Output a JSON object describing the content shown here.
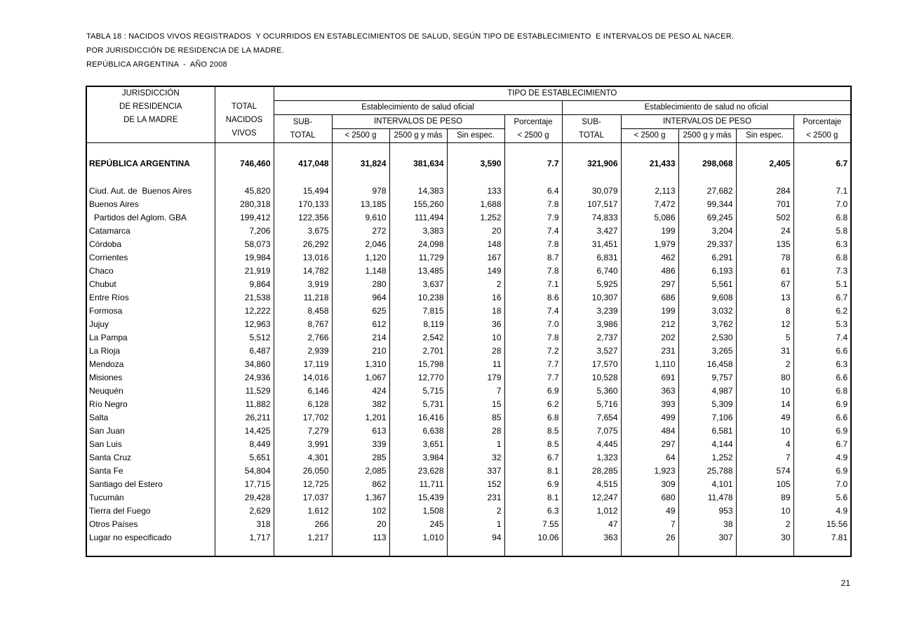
{
  "titles": [
    "TABLA 18 : NACIDOS VIVOS REGISTRADOS  Y OCURRIDOS EN ESTABLECIMIENTOS DE SALUD, SEGÚN TIPO DE ESTABLECIMIENTO  E INTERVALOS DE PESO AL NACER.",
    "POR JURISDICCIÓN DE RESIDENCIA DE LA MADRE.",
    "REPÚBLICA ARGENTINA  -  AÑO 2008"
  ],
  "page_number": "21",
  "header": {
    "jurisdiccion": [
      "JURISDICCIÓN",
      "DE RESIDENCIA",
      "DE LA MADRE"
    ],
    "total_nacidos": [
      "TOTAL",
      "NACIDOS",
      "VIVOS"
    ],
    "tipo_establecimiento": "TIPO DE ESTABLECIMIENTO",
    "oficial": "Establecimiento de salud oficial",
    "no_oficial": "Establecimiento de salud no oficial",
    "sub_total": [
      "SUB-",
      "TOTAL"
    ],
    "intervalos": "INTERVALOS DE PESO",
    "porcentaje": [
      "Porcentaje",
      "< 2500 g"
    ],
    "peso_cols": [
      "< 2500 g",
      "2500 g y más",
      "Sin espec."
    ]
  },
  "total_row": {
    "label": "REPÚBLICA ARGENTINA",
    "indent": false,
    "values": [
      "746,460",
      "417,048",
      "31,824",
      "381,634",
      "3,590",
      "7.7",
      "321,906",
      "21,433",
      "298,068",
      "2,405",
      "6.7"
    ]
  },
  "rows": [
    {
      "label": "Ciud. Aut. de  Buenos Aires",
      "indent": false,
      "values": [
        "45,820",
        "15,494",
        "978",
        "14,383",
        "133",
        "6.4",
        "30,079",
        "2,113",
        "27,682",
        "284",
        "7.1"
      ]
    },
    {
      "label": "Buenos Aires",
      "indent": false,
      "values": [
        "280,318",
        "170,133",
        "13,185",
        "155,260",
        "1,688",
        "7.8",
        "107,517",
        "7,472",
        "99,344",
        "701",
        "7.0"
      ]
    },
    {
      "label": "Partidos del Aglom. GBA",
      "indent": true,
      "values": [
        "199,412",
        "122,356",
        "9,610",
        "111,494",
        "1,252",
        "7.9",
        "74,833",
        "5,086",
        "69,245",
        "502",
        "6.8"
      ]
    },
    {
      "label": "Catamarca",
      "indent": false,
      "values": [
        "7,206",
        "3,675",
        "272",
        "3,383",
        "20",
        "7.4",
        "3,427",
        "199",
        "3,204",
        "24",
        "5.8"
      ]
    },
    {
      "label": "Córdoba",
      "indent": false,
      "values": [
        "58,073",
        "26,292",
        "2,046",
        "24,098",
        "148",
        "7.8",
        "31,451",
        "1,979",
        "29,337",
        "135",
        "6.3"
      ]
    },
    {
      "label": "Corrientes",
      "indent": false,
      "values": [
        "19,984",
        "13,016",
        "1,120",
        "11,729",
        "167",
        "8.7",
        "6,831",
        "462",
        "6,291",
        "78",
        "6.8"
      ]
    },
    {
      "label": "Chaco",
      "indent": false,
      "values": [
        "21,919",
        "14,782",
        "1,148",
        "13,485",
        "149",
        "7.8",
        "6,740",
        "486",
        "6,193",
        "61",
        "7.3"
      ]
    },
    {
      "label": "Chubut",
      "indent": false,
      "values": [
        "9,864",
        "3,919",
        "280",
        "3,637",
        "2",
        "7.1",
        "5,925",
        "297",
        "5,561",
        "67",
        "5.1"
      ]
    },
    {
      "label": "Entre Ríos",
      "indent": false,
      "values": [
        "21,538",
        "11,218",
        "964",
        "10,238",
        "16",
        "8.6",
        "10,307",
        "686",
        "9,608",
        "13",
        "6.7"
      ]
    },
    {
      "label": "Formosa",
      "indent": false,
      "values": [
        "12,222",
        "8,458",
        "625",
        "7,815",
        "18",
        "7.4",
        "3,239",
        "199",
        "3,032",
        "8",
        "6.2"
      ]
    },
    {
      "label": "Jujuy",
      "indent": false,
      "values": [
        "12,963",
        "8,767",
        "612",
        "8,119",
        "36",
        "7.0",
        "3,986",
        "212",
        "3,762",
        "12",
        "5.3"
      ]
    },
    {
      "label": "La Pampa",
      "indent": false,
      "values": [
        "5,512",
        "2,766",
        "214",
        "2,542",
        "10",
        "7.8",
        "2,737",
        "202",
        "2,530",
        "5",
        "7.4"
      ]
    },
    {
      "label": "La Rioja",
      "indent": false,
      "values": [
        "6,487",
        "2,939",
        "210",
        "2,701",
        "28",
        "7.2",
        "3,527",
        "231",
        "3,265",
        "31",
        "6.6"
      ]
    },
    {
      "label": "Mendoza",
      "indent": false,
      "values": [
        "34,860",
        "17,119",
        "1,310",
        "15,798",
        "11",
        "7.7",
        "17,570",
        "1,110",
        "16,458",
        "2",
        "6.3"
      ]
    },
    {
      "label": "Misiones",
      "indent": false,
      "values": [
        "24,936",
        "14,016",
        "1,067",
        "12,770",
        "179",
        "7.7",
        "10,528",
        "691",
        "9,757",
        "80",
        "6.6"
      ]
    },
    {
      "label": "Neuquén",
      "indent": false,
      "values": [
        "11,529",
        "6,146",
        "424",
        "5,715",
        "7",
        "6.9",
        "5,360",
        "363",
        "4,987",
        "10",
        "6.8"
      ]
    },
    {
      "label": "Río Negro",
      "indent": false,
      "values": [
        "11,882",
        "6,128",
        "382",
        "5,731",
        "15",
        "6.2",
        "5,716",
        "393",
        "5,309",
        "14",
        "6.9"
      ]
    },
    {
      "label": "Salta",
      "indent": false,
      "values": [
        "26,211",
        "17,702",
        "1,201",
        "16,416",
        "85",
        "6.8",
        "7,654",
        "499",
        "7,106",
        "49",
        "6.6"
      ]
    },
    {
      "label": "San Juan",
      "indent": false,
      "values": [
        "14,425",
        "7,279",
        "613",
        "6,638",
        "28",
        "8.5",
        "7,075",
        "484",
        "6,581",
        "10",
        "6.9"
      ]
    },
    {
      "label": "San Luis",
      "indent": false,
      "values": [
        "8,449",
        "3,991",
        "339",
        "3,651",
        "1",
        "8.5",
        "4,445",
        "297",
        "4,144",
        "4",
        "6.7"
      ]
    },
    {
      "label": "Santa Cruz",
      "indent": false,
      "values": [
        "5,651",
        "4,301",
        "285",
        "3,984",
        "32",
        "6.7",
        "1,323",
        "64",
        "1,252",
        "7",
        "4.9"
      ]
    },
    {
      "label": "Santa Fe",
      "indent": false,
      "values": [
        "54,804",
        "26,050",
        "2,085",
        "23,628",
        "337",
        "8.1",
        "28,285",
        "1,923",
        "25,788",
        "574",
        "6.9"
      ]
    },
    {
      "label": "Santiago del Estero",
      "indent": false,
      "values": [
        "17,715",
        "12,725",
        "862",
        "11,711",
        "152",
        "6.9",
        "4,515",
        "309",
        "4,101",
        "105",
        "7.0"
      ]
    },
    {
      "label": "Tucumán",
      "indent": false,
      "values": [
        "29,428",
        "17,037",
        "1,367",
        "15,439",
        "231",
        "8.1",
        "12,247",
        "680",
        "11,478",
        "89",
        "5.6"
      ]
    },
    {
      "label": "Tierra del Fuego",
      "indent": false,
      "values": [
        "2,629",
        "1,612",
        "102",
        "1,508",
        "2",
        "6.3",
        "1,012",
        "49",
        "953",
        "10",
        "4.9"
      ]
    },
    {
      "label": "Otros Países",
      "indent": false,
      "values": [
        "318",
        "266",
        "20",
        "245",
        "1",
        "7.55",
        "47",
        "7",
        "38",
        "2",
        "15.56"
      ]
    },
    {
      "label": "Lugar no especificado",
      "indent": false,
      "values": [
        "1,717",
        "1,217",
        "113",
        "1,010",
        "94",
        "10.06",
        "363",
        "26",
        "307",
        "30",
        "7.81"
      ]
    }
  ]
}
